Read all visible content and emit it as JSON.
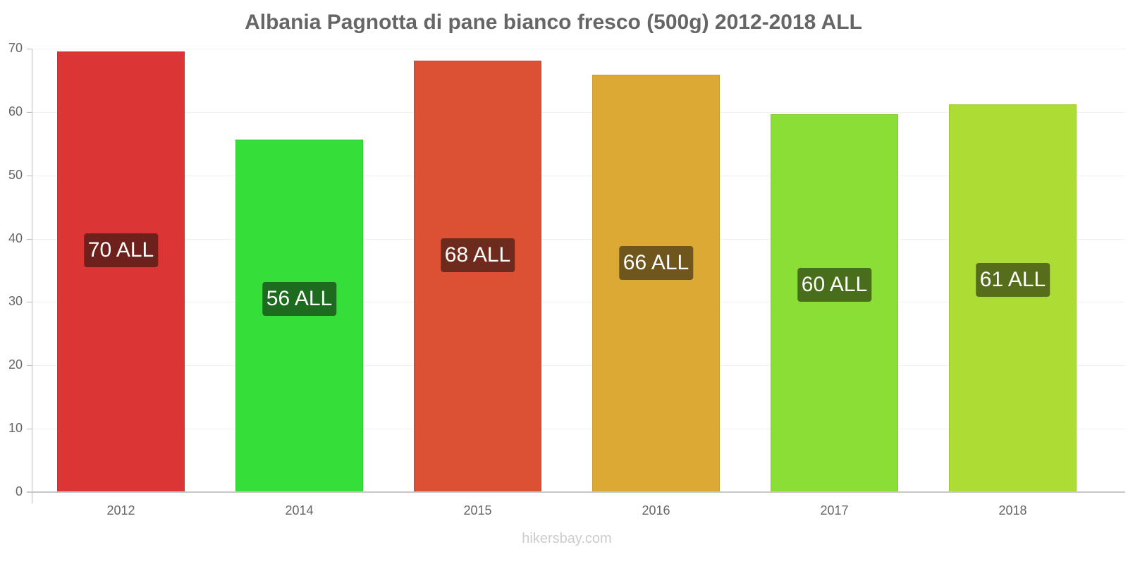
{
  "chart_data": {
    "type": "bar",
    "title": "Albania Pagnotta di pane bianco fresco (500g) 2012-2018 ALL",
    "xlabel": "",
    "ylabel": "",
    "categories": [
      "2012",
      "2014",
      "2015",
      "2016",
      "2017",
      "2018"
    ],
    "values": [
      69.6,
      55.6,
      68.1,
      65.9,
      59.7,
      61.2
    ],
    "data_labels": [
      "70 ALL",
      "56 ALL",
      "68 ALL",
      "66 ALL",
      "60 ALL",
      "61 ALL"
    ],
    "bar_colors": [
      "#DB3535",
      "#36DE39",
      "#DC5034",
      "#DCAA34",
      "#8BDE36",
      "#ADDC34"
    ],
    "label_colors": [
      "#6E201C",
      "#1C6B1E",
      "#6E2A1C",
      "#6E561C",
      "#486E1C",
      "#566E1C"
    ],
    "ylim": [
      0,
      70
    ],
    "yticks": [
      "0",
      "10",
      "20",
      "30",
      "40",
      "50",
      "60",
      "70"
    ],
    "grid": true,
    "legend": null
  },
  "footer": "hikersbay.com"
}
